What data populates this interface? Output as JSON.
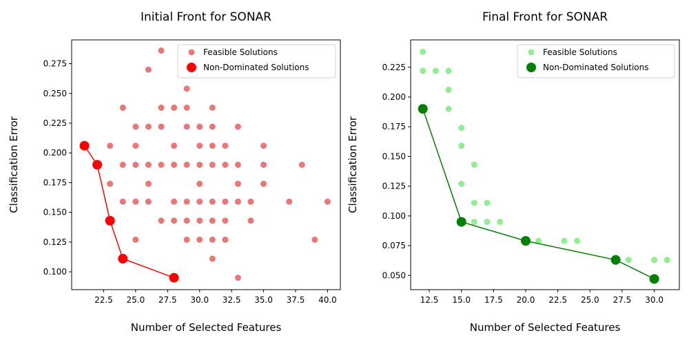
{
  "chart_data": [
    {
      "type": "scatter",
      "title": "Initial Front for SONAR",
      "xlabel": "Number of Selected Features",
      "ylabel": "Classification Error",
      "xlim": [
        20.0,
        41.0
      ],
      "ylim": [
        0.085,
        0.295
      ],
      "xticks": [
        22.5,
        25.0,
        27.5,
        30.0,
        32.5,
        35.0,
        37.5,
        40.0
      ],
      "yticks": [
        0.1,
        0.125,
        0.15,
        0.175,
        0.2,
        0.225,
        0.25,
        0.275
      ],
      "xtick_labels": [
        "22.5",
        "25.0",
        "27.5",
        "30.0",
        "32.5",
        "35.0",
        "37.5",
        "40.0"
      ],
      "ytick_labels": [
        "0.100",
        "0.125",
        "0.150",
        "0.175",
        "0.200",
        "0.225",
        "0.250",
        "0.275"
      ],
      "legend": "top-right",
      "grid": false,
      "series": [
        {
          "name": "Feasible Solutions",
          "color": "#e87878",
          "marker": "small",
          "points": [
            [
              23,
              0.206
            ],
            [
              23,
              0.174
            ],
            [
              24,
              0.238
            ],
            [
              24,
              0.19
            ],
            [
              24,
              0.159
            ],
            [
              25,
              0.222
            ],
            [
              25,
              0.206
            ],
            [
              25,
              0.19
            ],
            [
              25,
              0.159
            ],
            [
              25,
              0.127
            ],
            [
              26,
              0.27
            ],
            [
              26,
              0.222
            ],
            [
              26,
              0.19
            ],
            [
              26,
              0.174
            ],
            [
              26,
              0.159
            ],
            [
              27,
              0.286
            ],
            [
              27,
              0.238
            ],
            [
              27,
              0.222
            ],
            [
              27,
              0.19
            ],
            [
              27,
              0.143
            ],
            [
              28,
              0.238
            ],
            [
              28,
              0.206
            ],
            [
              28,
              0.19
            ],
            [
              28,
              0.159
            ],
            [
              28,
              0.143
            ],
            [
              29,
              0.254
            ],
            [
              29,
              0.238
            ],
            [
              29,
              0.222
            ],
            [
              29,
              0.19
            ],
            [
              29,
              0.159
            ],
            [
              29,
              0.143
            ],
            [
              29,
              0.127
            ],
            [
              30,
              0.222
            ],
            [
              30,
              0.206
            ],
            [
              30,
              0.19
            ],
            [
              30,
              0.174
            ],
            [
              30,
              0.159
            ],
            [
              30,
              0.143
            ],
            [
              30,
              0.127
            ],
            [
              31,
              0.238
            ],
            [
              31,
              0.222
            ],
            [
              31,
              0.206
            ],
            [
              31,
              0.19
            ],
            [
              31,
              0.159
            ],
            [
              31,
              0.143
            ],
            [
              31,
              0.127
            ],
            [
              31,
              0.111
            ],
            [
              32,
              0.206
            ],
            [
              32,
              0.19
            ],
            [
              32,
              0.159
            ],
            [
              32,
              0.143
            ],
            [
              32,
              0.127
            ],
            [
              33,
              0.222
            ],
            [
              33,
              0.19
            ],
            [
              33,
              0.174
            ],
            [
              33,
              0.159
            ],
            [
              33,
              0.095
            ],
            [
              34,
              0.159
            ],
            [
              34,
              0.143
            ],
            [
              35,
              0.206
            ],
            [
              35,
              0.19
            ],
            [
              35,
              0.174
            ],
            [
              37,
              0.159
            ],
            [
              38,
              0.19
            ],
            [
              39,
              0.127
            ],
            [
              40,
              0.159
            ]
          ]
        },
        {
          "name": "Non-Dominated Solutions",
          "color": "#ff0000",
          "marker": "large",
          "connected": true,
          "points": [
            [
              21,
              0.206
            ],
            [
              22,
              0.19
            ],
            [
              23,
              0.143
            ],
            [
              24,
              0.111
            ],
            [
              28,
              0.095
            ]
          ]
        }
      ]
    },
    {
      "type": "scatter",
      "title": "Final Front for SONAR",
      "xlabel": "Number of Selected Features",
      "ylabel": "Classification Error",
      "xlim": [
        11.05,
        31.95
      ],
      "ylim": [
        0.038,
        0.248
      ],
      "xticks": [
        12.5,
        15.0,
        17.5,
        20.0,
        22.5,
        25.0,
        27.5,
        30.0
      ],
      "yticks": [
        0.05,
        0.075,
        0.1,
        0.125,
        0.15,
        0.175,
        0.2,
        0.225
      ],
      "xtick_labels": [
        "12.5",
        "15.0",
        "17.5",
        "20.0",
        "22.5",
        "25.0",
        "27.5",
        "30.0"
      ],
      "ytick_labels": [
        "0.050",
        "0.075",
        "0.100",
        "0.125",
        "0.150",
        "0.175",
        "0.200",
        "0.225"
      ],
      "legend": "top-right",
      "grid": false,
      "series": [
        {
          "name": "Feasible Solutions",
          "color": "#90ee90",
          "marker": "small",
          "points": [
            [
              12,
              0.238
            ],
            [
              12,
              0.222
            ],
            [
              13,
              0.222
            ],
            [
              14,
              0.222
            ],
            [
              14,
              0.206
            ],
            [
              14,
              0.19
            ],
            [
              15,
              0.174
            ],
            [
              15,
              0.159
            ],
            [
              15,
              0.127
            ],
            [
              16,
              0.143
            ],
            [
              16,
              0.111
            ],
            [
              16,
              0.095
            ],
            [
              17,
              0.111
            ],
            [
              17,
              0.095
            ],
            [
              18,
              0.095
            ],
            [
              21,
              0.079
            ],
            [
              23,
              0.079
            ],
            [
              24,
              0.079
            ],
            [
              28,
              0.063
            ],
            [
              30,
              0.063
            ],
            [
              31,
              0.063
            ]
          ]
        },
        {
          "name": "Non-Dominated Solutions",
          "color": "#008000",
          "marker": "large",
          "connected": true,
          "points": [
            [
              12,
              0.19
            ],
            [
              15,
              0.095
            ],
            [
              20,
              0.079
            ],
            [
              27,
              0.063
            ],
            [
              30,
              0.047
            ]
          ]
        }
      ]
    }
  ]
}
